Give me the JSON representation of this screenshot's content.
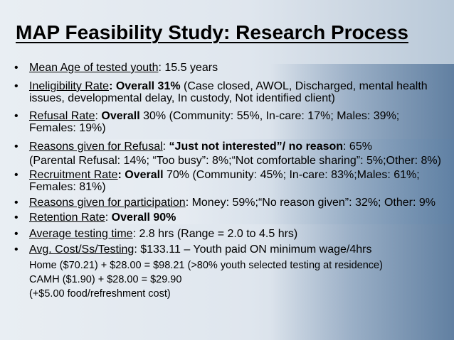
{
  "slide": {
    "title": "MAP Feasibility Study: Research Process",
    "bullet_glyph": "•",
    "items": [
      {
        "label": "Mean Age of tested youth",
        "rest": ": 15.5 years"
      },
      {
        "label": "Ineligibility Rate",
        "bold": ": Overall 31%",
        "rest": " (Case closed, AWOL, Discharged, mental health issues, developmental delay, In custody, Not identified client)"
      },
      {
        "label": "Refusal Rate",
        "pre": ": ",
        "bold": "Overall",
        "rest": " 30% (Community: 55%, In-care: 17%; Males: 39%; Females: 19%)"
      },
      {
        "label": "Reasons given for Refusal",
        "pre": ": ",
        "bold": "“Just not interested”/ no reason",
        "rest": ": 65%",
        "sub": "(Parental Refusal: 14%; “Too busy”: 8%;“Not comfortable sharing”: 5%;Other: 8%)"
      },
      {
        "label": "Recruitment Rate",
        "bold": ":  Overall",
        "rest": " 70% (Community: 45%; In-care: 83%;Males: 61%; Females: 81%)"
      },
      {
        "label": "Reasons given for participation",
        "rest": ":  Money: 59%;“No reason given”: 32%; Other: 9%"
      },
      {
        "label": "Retention Rate",
        "pre": ": ",
        "bold": "Overall 90%",
        "rest": ""
      },
      {
        "label": "Average testing time",
        "rest": ": 2.8 hrs (Range = 2.0 to 4.5 hrs)"
      },
      {
        "label": "Avg. Cost/Ss/Testing",
        "rest": ": $133.11 – Youth paid ON minimum wage/4hrs",
        "sub_lines": [
          "Home ($70.21) + $28.00 = $98.21 (>80% youth selected testing at residence)",
          "CAMH ($1.90) + $28.00 =  $29.90",
          "(+$5.00 food/refreshment cost)"
        ]
      }
    ]
  }
}
